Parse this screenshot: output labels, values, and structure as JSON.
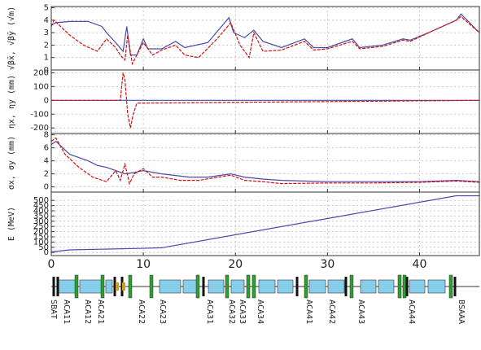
{
  "chart_data": [
    {
      "type": "line",
      "ylabel": "√β̄x, √β̄y (√m)",
      "xlim": [
        0,
        46.5
      ],
      "xticks": [
        0,
        10,
        20,
        30,
        40
      ],
      "ylim": [
        0,
        5.1
      ],
      "yticks": [
        0,
        1,
        2,
        3,
        4,
        5
      ],
      "grid": true,
      "series": [
        {
          "color": "#4a4aa8",
          "x": [
            0,
            0.5,
            2,
            4,
            5.5,
            6,
            7,
            7.8,
            8.2,
            8.6,
            9.3,
            10,
            10.5,
            12,
            13.5,
            14.5,
            17,
            19.3,
            19.8,
            21,
            22,
            23,
            25,
            27.5,
            28.5,
            30,
            32.7,
            33.5,
            36,
            38.2,
            39,
            41,
            44,
            44.5,
            46.5
          ],
          "values": [
            3.6,
            3.8,
            3.9,
            3.9,
            3.5,
            3,
            2.2,
            1.5,
            3.5,
            1.2,
            1.2,
            2.5,
            1.7,
            1.7,
            2.3,
            1.8,
            2.2,
            4.2,
            3,
            2.6,
            3.2,
            2.3,
            1.8,
            2.5,
            1.8,
            1.8,
            2.5,
            1.8,
            2,
            2.5,
            2.4,
            3,
            4,
            4.5,
            3
          ]
        },
        {
          "color": "#d01010",
          "x": [
            0,
            0.3,
            1,
            2,
            3.5,
            5,
            6,
            7,
            7.5,
            8,
            8.3,
            8.8,
            9.5,
            10,
            11,
            12,
            13.5,
            14.5,
            16,
            18,
            19.5,
            20.5,
            21.5,
            22,
            23,
            25,
            27.5,
            28.5,
            30,
            32.7,
            33.5,
            36,
            38.2,
            39,
            41,
            44,
            44.5,
            46.5
          ],
          "values": [
            3.5,
            4,
            3.5,
            2.8,
            2,
            1.5,
            2.5,
            1.8,
            1.2,
            0.8,
            2.8,
            0.5,
            1.5,
            2.2,
            1.2,
            1.6,
            2,
            1.2,
            1,
            2.5,
            3.8,
            2,
            1,
            3,
            1.5,
            1.6,
            2.3,
            1.6,
            1.7,
            2.3,
            1.7,
            1.9,
            2.4,
            2.3,
            3,
            4,
            4.3,
            3
          ]
        }
      ]
    },
    {
      "type": "line",
      "ylabel": "ηx, ηy (mm)",
      "xlim": [
        0,
        46.5
      ],
      "xticks": [
        0,
        10,
        20,
        30,
        40
      ],
      "ylim": [
        -240,
        220
      ],
      "yticks": [
        -200,
        -100,
        0,
        100,
        200
      ],
      "grid": true,
      "series": [
        {
          "color": "#4a4aa8",
          "x": [
            0,
            46.5
          ],
          "values": [
            0,
            0
          ]
        },
        {
          "color": "#d01010",
          "x": [
            0,
            7.5,
            7.8,
            8,
            8.3,
            8.6,
            8.9,
            9.3,
            46.5
          ],
          "values": [
            0,
            0,
            200,
            150,
            -100,
            -200,
            -100,
            -20,
            0
          ]
        }
      ]
    },
    {
      "type": "line",
      "ylabel": "σx, σy (mm)",
      "xlim": [
        0,
        46.5
      ],
      "xticks": [
        0,
        10,
        20,
        30,
        40
      ],
      "ylim": [
        -0.8,
        8.2
      ],
      "yticks": [
        0,
        2,
        4,
        6,
        8
      ],
      "grid": true,
      "series": [
        {
          "color": "#4a4aa8",
          "x": [
            0,
            0.5,
            2,
            4,
            5,
            6,
            7,
            8,
            9,
            10,
            12,
            15,
            17,
            19.5,
            21,
            23,
            25,
            30,
            35,
            40,
            44,
            46.5
          ],
          "values": [
            6.5,
            7,
            5,
            4,
            3.3,
            3,
            2.5,
            2,
            2.2,
            2.5,
            2,
            1.5,
            1.5,
            2,
            1.5,
            1.2,
            1,
            0.8,
            0.8,
            0.8,
            1,
            0.8
          ]
        },
        {
          "color": "#d01010",
          "x": [
            0,
            0.5,
            1.5,
            3,
            4.5,
            6,
            7,
            7.5,
            8,
            8.5,
            9,
            10,
            11,
            12,
            14,
            16,
            19.5,
            21,
            23,
            25,
            30,
            35,
            40,
            44,
            46.5
          ],
          "values": [
            7,
            7.5,
            5,
            3,
            1.5,
            0.8,
            2.5,
            1,
            3.5,
            0.5,
            2,
            2.8,
            1.5,
            1.5,
            1,
            1,
            1.8,
            1,
            0.8,
            0.5,
            0.6,
            0.6,
            0.7,
            0.9,
            0.7
          ]
        }
      ]
    },
    {
      "type": "line",
      "ylabel": "E (MeV)",
      "xlim": [
        0,
        46.5
      ],
      "xticks": [
        0,
        10,
        20,
        30,
        40
      ],
      "ylim": [
        -30,
        580
      ],
      "yticks": [
        0,
        50,
        100,
        150,
        200,
        250,
        300,
        350,
        400,
        450,
        500
      ],
      "grid": true,
      "series": [
        {
          "color": "#4a4aa8",
          "x": [
            0,
            2,
            10,
            12,
            44,
            46.5
          ],
          "values": [
            5,
            25,
            40,
            45,
            545,
            545
          ]
        }
      ]
    }
  ],
  "lattice": {
    "labels": [
      "SBAT",
      "ACA11",
      "ACA12",
      "ACA21",
      "ACA22",
      "ACA23",
      "ACA31",
      "ACA32",
      "ACA33",
      "ACA34",
      "ACA41",
      "ACA42",
      "ACA43",
      "ACA44",
      "BSAAA"
    ]
  }
}
